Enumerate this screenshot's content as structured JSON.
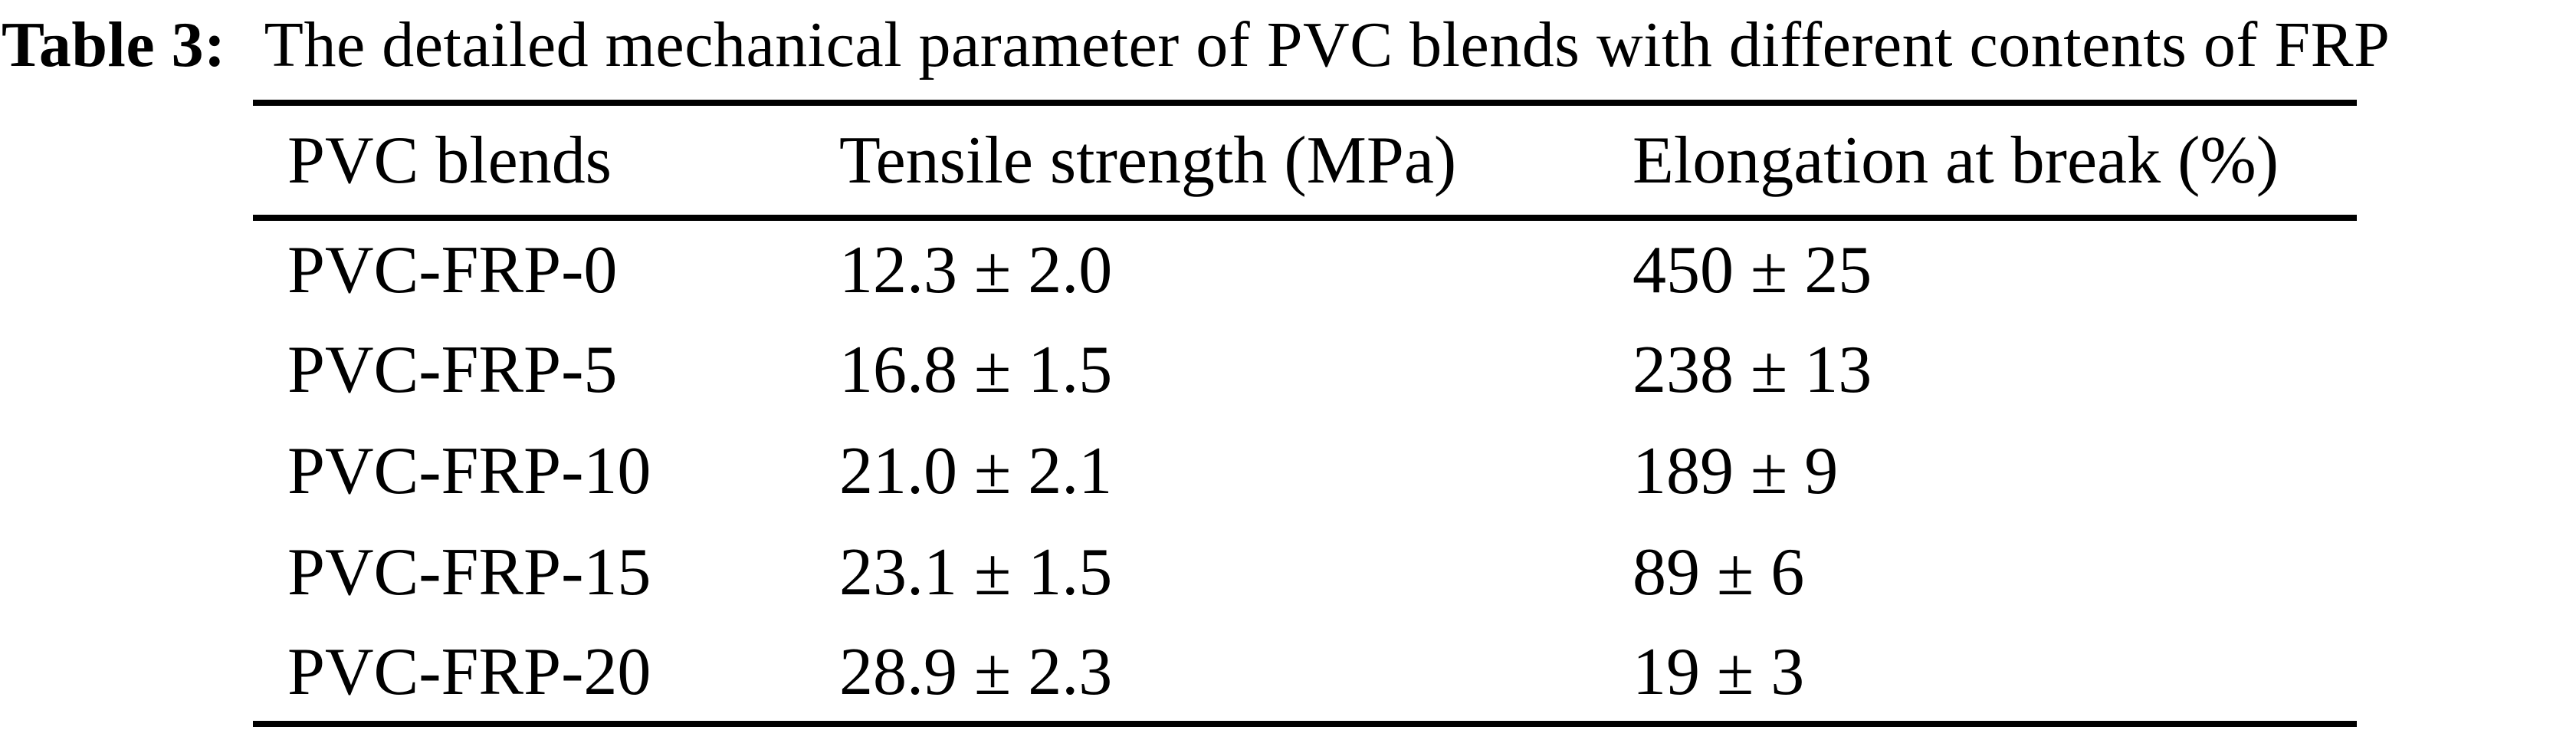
{
  "page": {
    "background_color": "#ffffff",
    "text_color": "#000000"
  },
  "caption": {
    "label": "Table 3:",
    "text": "The detailed mechanical parameter of PVC blends with different contents of FRP"
  },
  "table": {
    "columns": [
      "PVC blends",
      "Tensile strength (MPa)",
      "Elongation at break (%)"
    ],
    "rows": [
      {
        "blend": "PVC-FRP-0",
        "tensile_strength_mpa": "12.3 ± 2.0",
        "elongation_at_break_pct": "450 ± 25"
      },
      {
        "blend": "PVC-FRP-5",
        "tensile_strength_mpa": "16.8 ± 1.5",
        "elongation_at_break_pct": "238 ± 13"
      },
      {
        "blend": "PVC-FRP-10",
        "tensile_strength_mpa": "21.0 ± 2.1",
        "elongation_at_break_pct": "189 ± 9"
      },
      {
        "blend": "PVC-FRP-15",
        "tensile_strength_mpa": "23.1 ± 1.5",
        "elongation_at_break_pct": "89 ± 6"
      },
      {
        "blend": "PVC-FRP-20",
        "tensile_strength_mpa": "28.9 ± 2.3",
        "elongation_at_break_pct": "19 ± 3"
      }
    ]
  }
}
